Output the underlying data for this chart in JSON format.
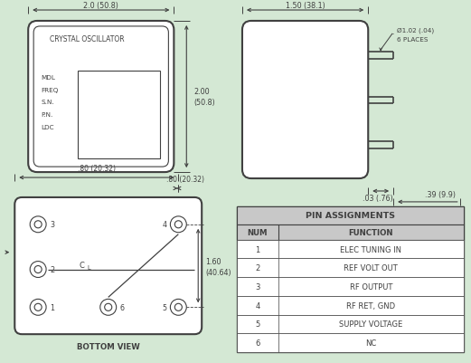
{
  "bg_color": "#d4e8d4",
  "line_color": "#404040",
  "white": "#ffffff",
  "gray_header": "#c8c8c8",
  "fig_width": 5.21,
  "fig_height": 4.02,
  "pin_rows": [
    [
      "1",
      "ELEC TUNING IN"
    ],
    [
      "2",
      "REF VOLT OUT"
    ],
    [
      "3",
      "RF OUTPUT"
    ],
    [
      "4",
      "RF RET, GND"
    ],
    [
      "5",
      "SUPPLY VOLTAGE"
    ],
    [
      "6",
      "NC"
    ]
  ]
}
